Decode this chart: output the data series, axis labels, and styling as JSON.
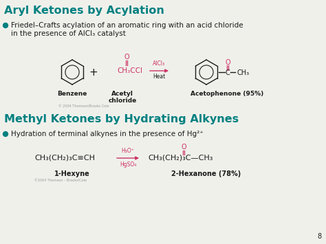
{
  "bg_color": "#f0f0eb",
  "title1": "Aryl Ketones by Acylation",
  "title1_color": "#008080",
  "bullet1_line1": "Friedel–Crafts acylation of an aromatic ring with an acid chloride",
  "bullet1_line2": "in the presence of AlCl₃ catalyst",
  "bullet_color": "#1a1a1a",
  "title2": "Methyl Ketones by Hydrating Alkynes",
  "title2_color": "#008080",
  "bullet2": "Hydration of terminal alkynes in the presence of Hg²⁺",
  "label_benzene": "Benzene",
  "label_acetyl": "Acetyl\nchloride",
  "label_acetophenone": "Acetophenone (95%)",
  "label_hexyne": "1-Hexyne",
  "label_hexanone": "2-Hexanone (78%)",
  "label_copyright1": "© 2004 Thomson/Brooks Cole",
  "label_copyright2": "©2004 Thomson – Brooks/Cole",
  "page_num": "8",
  "pink": "#cc3366",
  "dark": "#1a1a1a",
  "teal": "#008080"
}
